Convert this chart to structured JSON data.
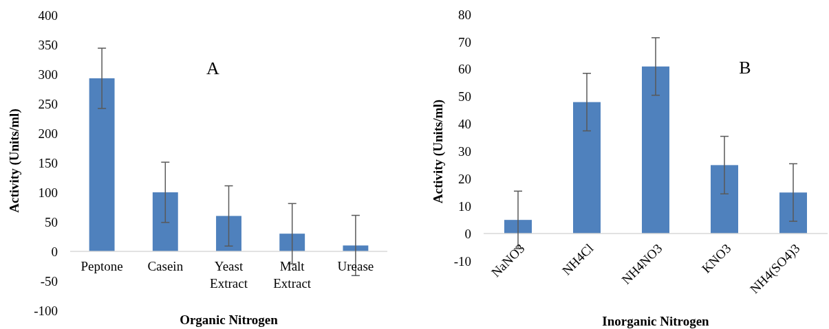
{
  "chart_data": [
    {
      "type": "bar",
      "xlabel": "Organic Nitrogen",
      "ylabel": "Activity (Units/ml)",
      "annotations": [
        "A"
      ],
      "categories": [
        "Peptone",
        "Casein",
        "Yeast Extract",
        "Malt Extract",
        "Urease"
      ],
      "values": [
        293,
        100,
        60,
        30,
        10
      ],
      "errors": [
        51,
        51,
        51,
        51,
        51
      ],
      "color": "#4f81bd",
      "ylim": [
        -100,
        400
      ],
      "yticks": [
        -100,
        -50,
        0,
        50,
        100,
        150,
        200,
        250,
        300,
        350,
        400
      ],
      "grid": false
    },
    {
      "type": "bar",
      "xlabel": "Inorganic Nitrogen",
      "ylabel": "Activity (Units/ml)",
      "annotations": [
        "B"
      ],
      "categories": [
        "NaNO3",
        "NH4Cl",
        "NH4NO3",
        "KNO3",
        "NH4(SO4)3"
      ],
      "values": [
        5,
        48,
        61,
        25,
        15
      ],
      "errors": [
        10.5,
        10.5,
        10.5,
        10.5,
        10.5
      ],
      "color": "#4f81bd",
      "ylim": [
        -10,
        80
      ],
      "yticks": [
        -10,
        0,
        10,
        20,
        30,
        40,
        50,
        60,
        70,
        80
      ],
      "grid": false
    }
  ]
}
